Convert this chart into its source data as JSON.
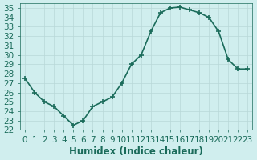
{
  "x": [
    0,
    1,
    2,
    3,
    4,
    5,
    6,
    7,
    8,
    9,
    10,
    11,
    12,
    13,
    14,
    15,
    16,
    17,
    18,
    19,
    20,
    21,
    22,
    23
  ],
  "y": [
    27.5,
    26.0,
    25.0,
    24.5,
    23.5,
    22.5,
    23.0,
    24.5,
    25.0,
    25.5,
    27.0,
    29.0,
    30.0,
    32.5,
    34.5,
    35.0,
    35.1,
    34.8,
    34.5,
    34.0,
    32.5,
    29.5,
    28.5,
    28.5
  ],
  "line_color": "#1a6b5a",
  "marker": "+",
  "marker_size": 5,
  "bg_color": "#d0eeee",
  "grid_color": "#b8d8d8",
  "xlabel": "Humidex (Indice chaleur)",
  "xlim": [
    -0.5,
    23.5
  ],
  "ylim": [
    22,
    35.5
  ],
  "yticks": [
    22,
    23,
    24,
    25,
    26,
    27,
    28,
    29,
    30,
    31,
    32,
    33,
    34,
    35
  ],
  "xticks": [
    0,
    1,
    2,
    3,
    4,
    5,
    6,
    7,
    8,
    9,
    10,
    11,
    12,
    13,
    14,
    15,
    16,
    17,
    18,
    19,
    20,
    21,
    22,
    23
  ],
  "font_color": "#1a6b5a",
  "font_size": 7.5,
  "label_font_size": 8.5
}
